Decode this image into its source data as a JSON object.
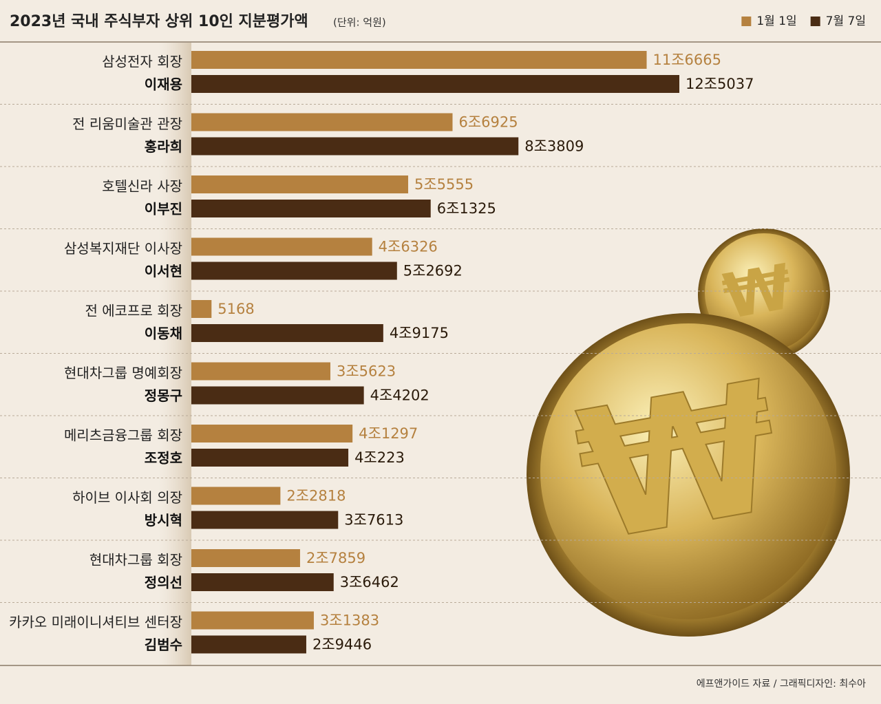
{
  "chart_data": {
    "type": "bar",
    "orientation": "horizontal",
    "title": "2023년 국내 주식부자 상위 10인 지분평가액",
    "subtitle": "(단위: 억원)",
    "source": "에프앤가이드 자료 / 그래픽디자인: 최수아",
    "roles": [
      "삼성전자 회장",
      "전 리움미술관 관장",
      "호텔신라 사장",
      "삼성복지재단 이사장",
      "전 에코프로 회장",
      "현대차그룹 명예회장",
      "메리츠금융그룹 회장",
      "하이브 이사회 의장",
      "현대차그룹 회장",
      "카카오 미래이니셔티브 센터장"
    ],
    "categories": [
      "이재용",
      "홍라희",
      "이부진",
      "이서현",
      "이동채",
      "정몽구",
      "조정호",
      "방시혁",
      "정의선",
      "김범수"
    ],
    "series": [
      {
        "name": "1월 1일",
        "color": "#b5813f",
        "values": [
          116665,
          66925,
          55555,
          46326,
          5168,
          35623,
          41297,
          22818,
          27859,
          31383
        ],
        "value_labels": [
          "11조6665",
          "6조6925",
          "5조5555",
          "4조6326",
          "5168",
          "3조5623",
          "4조1297",
          "2조2818",
          "2조7859",
          "3조1383"
        ]
      },
      {
        "name": "7월 7일",
        "color": "#4a2c14",
        "values": [
          125037,
          83809,
          61325,
          52692,
          49175,
          44202,
          40223,
          37613,
          36462,
          29446
        ],
        "value_labels": [
          "12조5037",
          "8조3809",
          "6조1325",
          "5조2692",
          "4조9175",
          "4조4202",
          "4조223",
          "3조7613",
          "3조6462",
          "2조9446"
        ]
      }
    ]
  }
}
